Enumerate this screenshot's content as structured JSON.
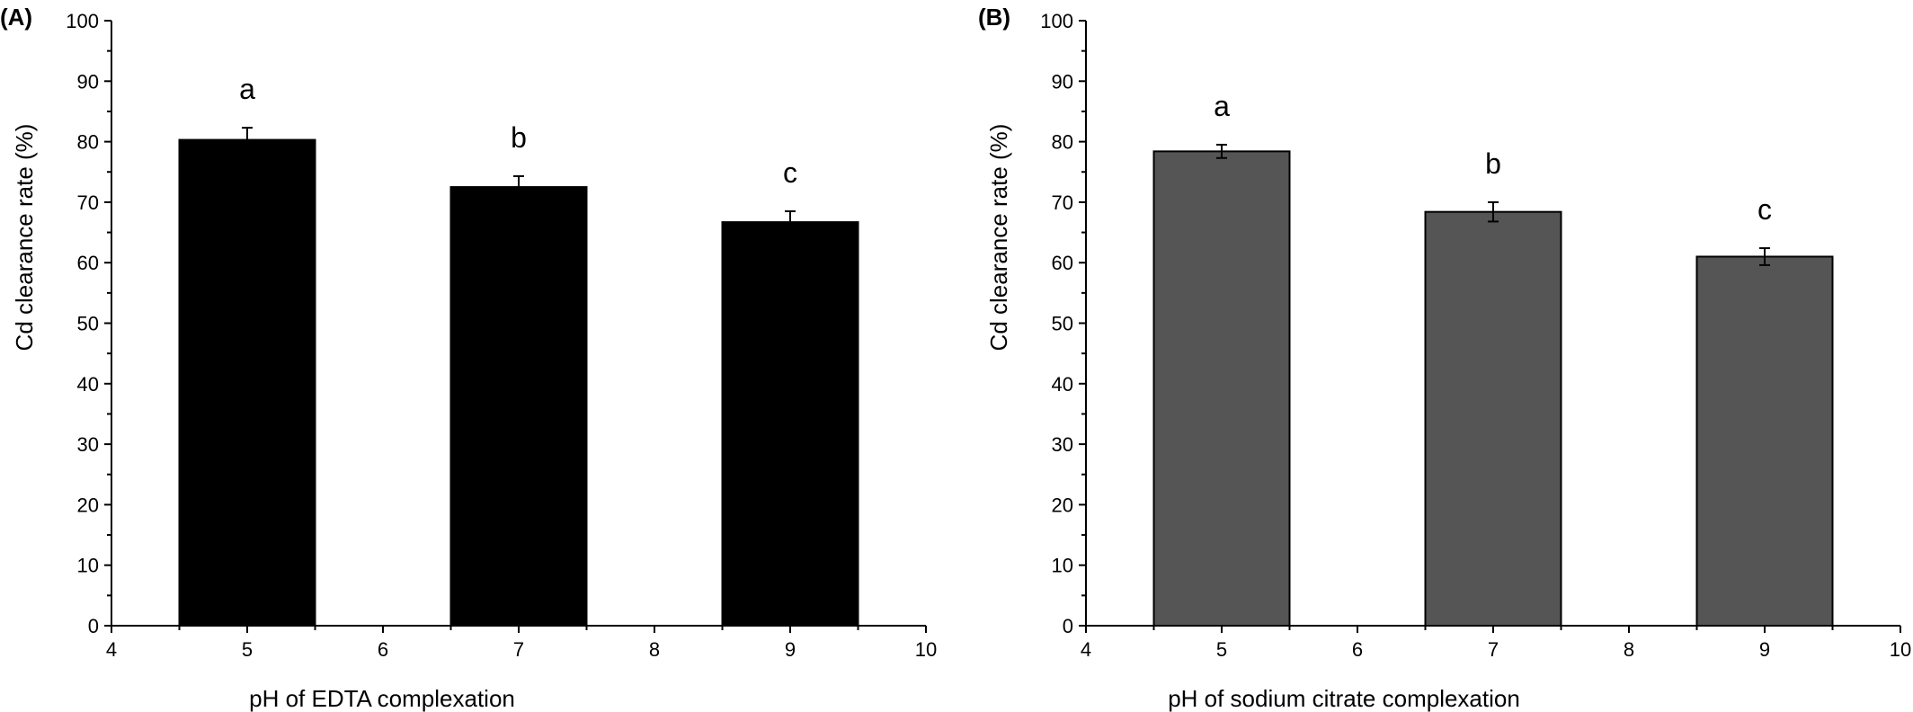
{
  "chart_data": [
    {
      "panel_label": "(A)",
      "type": "bar",
      "x": [
        5,
        7,
        9
      ],
      "values": [
        80.3,
        72.5,
        66.7
      ],
      "errors": [
        2.0,
        1.8,
        1.8
      ],
      "annotations": [
        "a",
        "b",
        "c"
      ],
      "xlabel": "pH of EDTA complexation",
      "ylabel": "Cd clearance rate (%)",
      "xlim": [
        4,
        10
      ],
      "ylim": [
        0,
        100
      ],
      "xticks": [
        "4",
        "5",
        "6",
        "7",
        "8",
        "9",
        "10"
      ],
      "yticks": [
        "0",
        "10",
        "20",
        "30",
        "40",
        "50",
        "60",
        "70",
        "80",
        "90",
        "100"
      ],
      "bar_width": 1.0,
      "bar_color": "#000000",
      "grid": false
    },
    {
      "panel_label": "(B)",
      "type": "bar",
      "x": [
        5,
        7,
        9
      ],
      "values": [
        78.4,
        68.4,
        61.0
      ],
      "errors": [
        1.1,
        1.6,
        1.4
      ],
      "annotations": [
        "a",
        "b",
        "c"
      ],
      "xlabel": "pH of sodium citrate complexation",
      "ylabel": "Cd clearance rate (%)",
      "xlim": [
        4,
        10
      ],
      "ylim": [
        0,
        100
      ],
      "xticks": [
        "4",
        "5",
        "6",
        "7",
        "8",
        "9",
        "10"
      ],
      "yticks": [
        "0",
        "10",
        "20",
        "30",
        "40",
        "50",
        "60",
        "70",
        "80",
        "90",
        "100"
      ],
      "bar_width": 1.0,
      "bar_color": "#555555",
      "grid": false
    }
  ]
}
